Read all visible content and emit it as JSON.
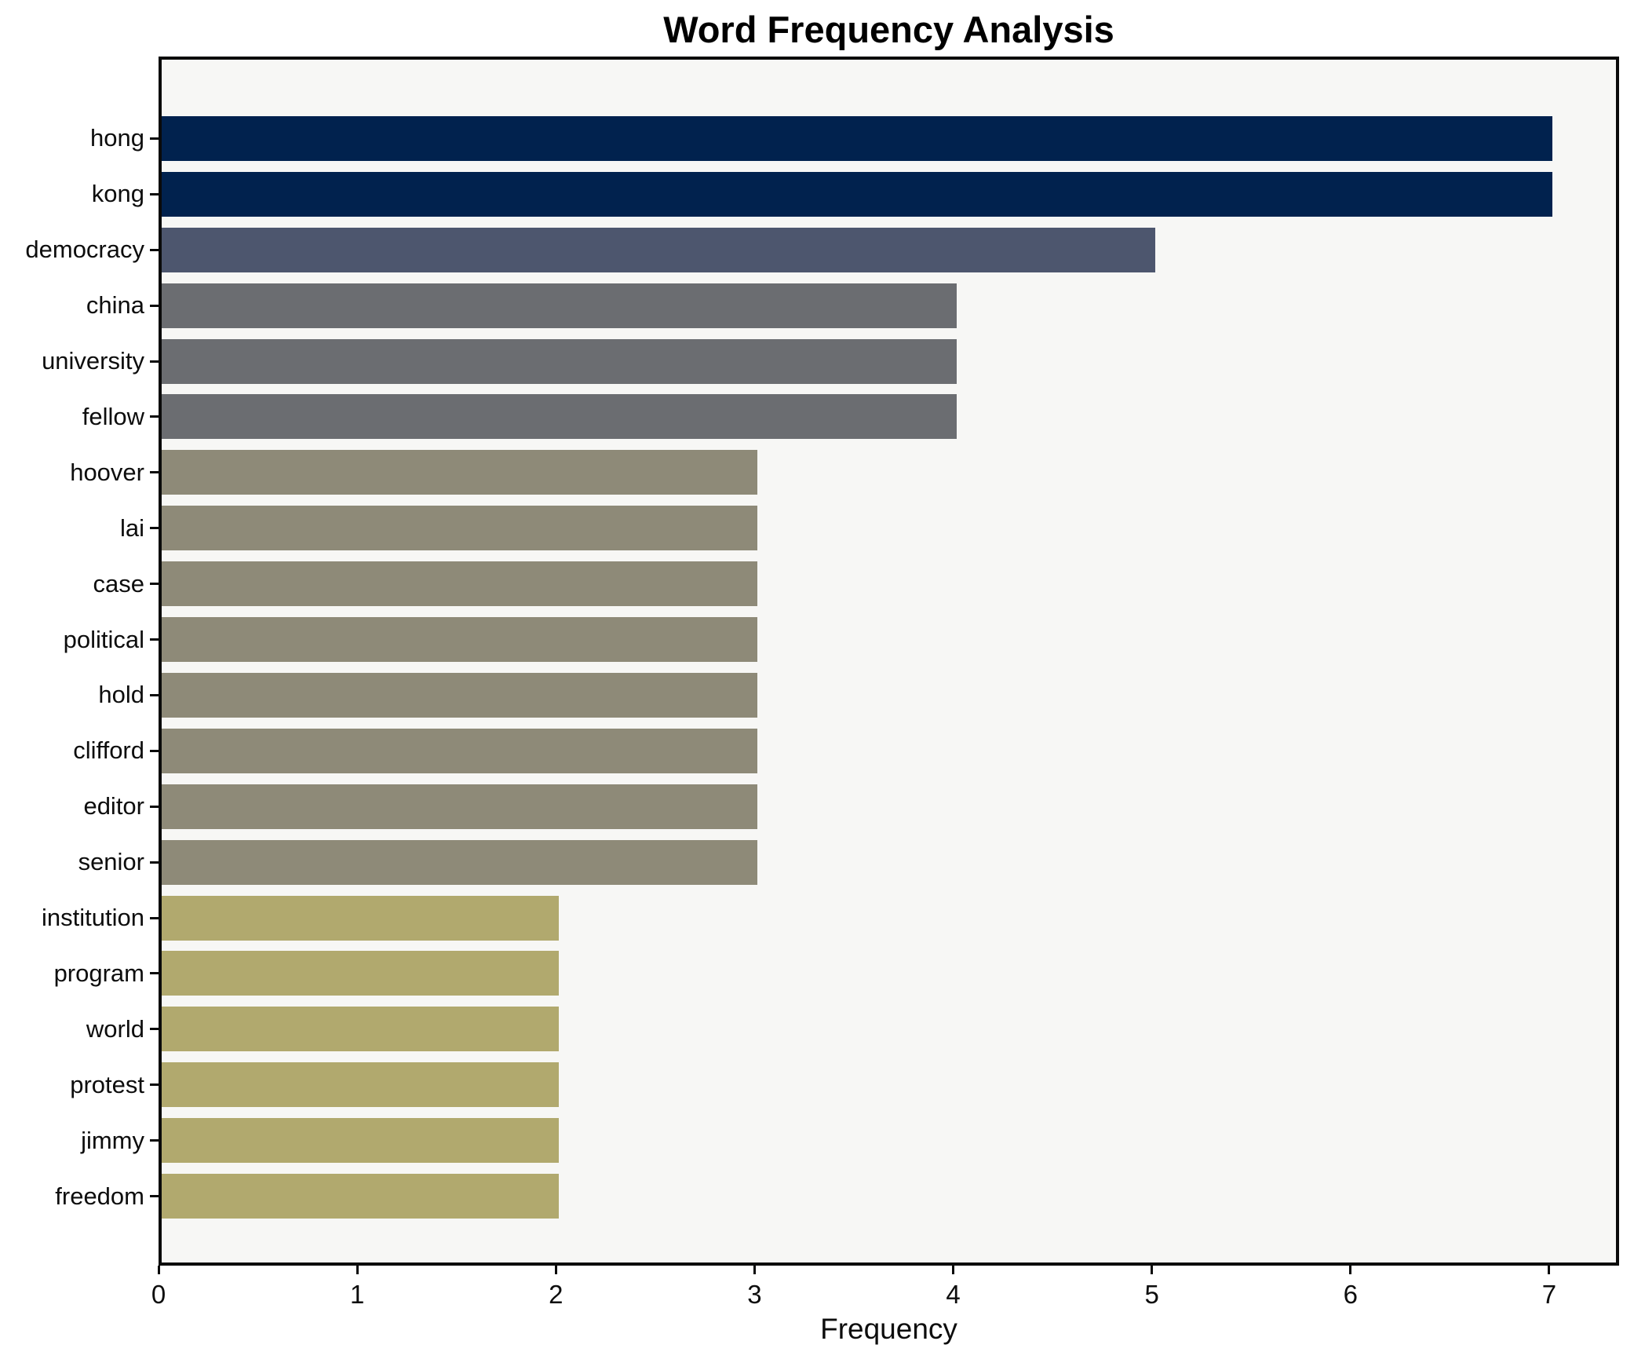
{
  "chart_data": {
    "type": "bar",
    "orientation": "horizontal",
    "title": "Word Frequency Analysis",
    "xlabel": "Frequency",
    "ylabel": "",
    "xlim": [
      0,
      7.35
    ],
    "x_ticks": [
      0,
      1,
      2,
      3,
      4,
      5,
      6,
      7
    ],
    "grid": false,
    "legend": "none",
    "plot_background": "#f7f7f5",
    "figure_background": "#ffffff",
    "spine_color": "#0a0a0a",
    "categories": [
      "hong",
      "kong",
      "democracy",
      "china",
      "university",
      "fellow",
      "hoover",
      "lai",
      "case",
      "political",
      "hold",
      "clifford",
      "editor",
      "senior",
      "institution",
      "program",
      "world",
      "protest",
      "jimmy",
      "freedom"
    ],
    "values": [
      7,
      7,
      5,
      4,
      4,
      4,
      3,
      3,
      3,
      3,
      3,
      3,
      3,
      3,
      2,
      2,
      2,
      2,
      2,
      2
    ],
    "bar_colors": [
      "#01224e",
      "#01224e",
      "#4d566e",
      "#6b6d71",
      "#6b6d71",
      "#6b6d71",
      "#8e8a78",
      "#8e8a78",
      "#8e8a78",
      "#8e8a78",
      "#8e8a78",
      "#8e8a78",
      "#8e8a78",
      "#8e8a78",
      "#b1a96e",
      "#b1a96e",
      "#b1a96e",
      "#b1a96e",
      "#b1a96e",
      "#b1a96e"
    ]
  }
}
